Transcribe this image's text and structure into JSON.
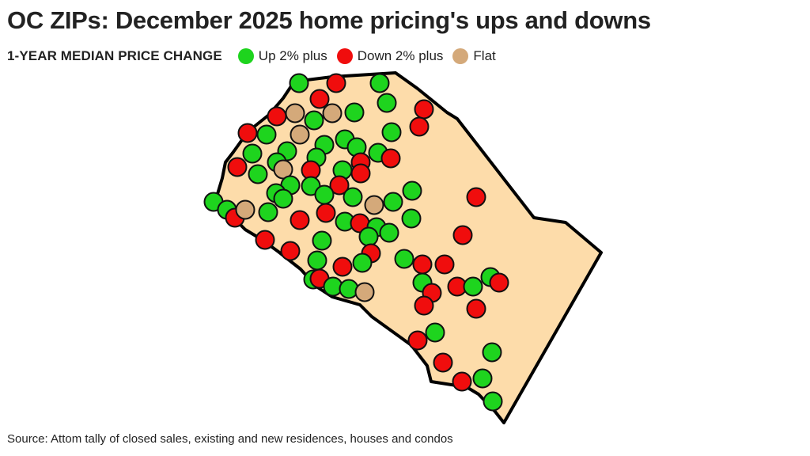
{
  "title": "OC ZIPs: December 2025 home pricing's ups and downs",
  "legend": {
    "title": "1-YEAR MEDIAN PRICE CHANGE",
    "items": [
      {
        "key": "up",
        "label": "Up 2% plus",
        "color": "#1ed41e"
      },
      {
        "key": "down",
        "label": "Down 2% plus",
        "color": "#f00d0d"
      },
      {
        "key": "flat",
        "label": "Flat",
        "color": "#d4a97a"
      }
    ]
  },
  "source": "Source: Attom tally of closed sales, existing and new residences, houses and condos",
  "map": {
    "region": "orange-county",
    "fill_color": "#fddcaa",
    "outline_color": "#000000"
  }
}
